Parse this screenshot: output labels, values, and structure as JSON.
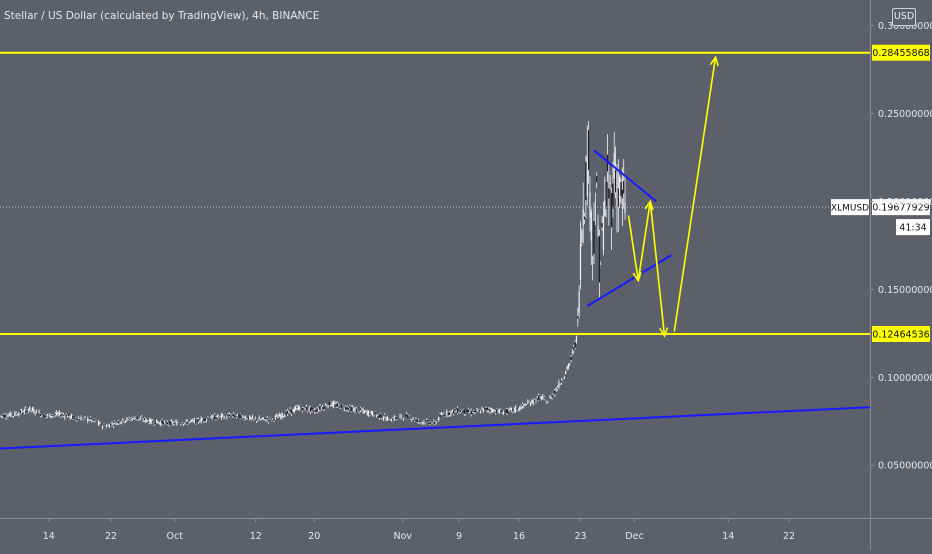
{
  "header": {
    "title": "Stellar / US Dollar (calculated by TradingView), 4h, BINANCE",
    "currency_badge": "USD"
  },
  "colors": {
    "background": "#5d606b",
    "candle": "#f2f2f2",
    "horizontal_level": "#ffff00",
    "trendline": "#1a1aff",
    "projection_arrow": "#ffff00",
    "axis_text": "#e6e6e6"
  },
  "chart_data": {
    "type": "line",
    "symbol": "XLMUSD",
    "interval": "4h",
    "exchange": "BINANCE",
    "y_scale": "linear",
    "ylim": [
      0.02,
      0.31
    ],
    "y_ticks": [
      "0.05000000",
      "0.10000000",
      "0.15000000",
      "0.20000000",
      "0.25000000",
      "0.30000000"
    ],
    "x_ticks": [
      "14",
      "22",
      "Oct",
      "12",
      "20",
      "Nov",
      "9",
      "16",
      "23",
      "Dec",
      "14",
      "22"
    ],
    "x_tick_indices": [
      7.5,
      15.8,
      24.3,
      35.1,
      42.9,
      54.7,
      62.2,
      70.2,
      78.4,
      85.6,
      98.1,
      106.2
    ],
    "xlim": [
      1,
      117
    ],
    "price_series": {
      "x": [
        1,
        3,
        5,
        7,
        9,
        11,
        13,
        15,
        17,
        19,
        21,
        23,
        25,
        27,
        29,
        31,
        33,
        35,
        37,
        39,
        41,
        43,
        45,
        47,
        49,
        51,
        53,
        55,
        57,
        59,
        60,
        62,
        64,
        66,
        68,
        70,
        72,
        73,
        74,
        75,
        76,
        77,
        77.5,
        78,
        78.5,
        79,
        79.5,
        80,
        80.5,
        81,
        81.5,
        82,
        82.5,
        83,
        83.5,
        84,
        84.5
      ],
      "y": [
        0.078,
        0.079,
        0.082,
        0.078,
        0.079,
        0.077,
        0.076,
        0.072,
        0.075,
        0.077,
        0.075,
        0.074,
        0.074,
        0.075,
        0.077,
        0.078,
        0.078,
        0.076,
        0.076,
        0.079,
        0.083,
        0.081,
        0.085,
        0.083,
        0.081,
        0.079,
        0.076,
        0.078,
        0.075,
        0.074,
        0.079,
        0.081,
        0.08,
        0.082,
        0.08,
        0.082,
        0.086,
        0.089,
        0.086,
        0.092,
        0.099,
        0.108,
        0.116,
        0.124,
        0.18,
        0.21,
        0.225,
        0.17,
        0.205,
        0.16,
        0.19,
        0.21,
        0.2,
        0.22,
        0.205,
        0.2,
        0.198
      ]
    },
    "levels": [
      {
        "value": 0.28455868,
        "label": "0.28455868"
      },
      {
        "value": 0.12464536,
        "label": "0.12464536"
      }
    ],
    "last_price": {
      "symbol": "XLMUSD",
      "value": 0.19677929,
      "label": "0.19677929",
      "countdown": "41:34"
    },
    "trendlines": [
      {
        "x": [
          1,
          117
        ],
        "y": [
          0.0595,
          0.083
        ]
      },
      {
        "x": [
          80.2,
          88.5
        ],
        "y": [
          0.229,
          0.2
        ]
      },
      {
        "x": [
          79.3,
          90.5
        ],
        "y": [
          0.1405,
          0.1695
        ]
      }
    ],
    "projection_arrows": [
      {
        "x": [
          84.8,
          86.1
        ],
        "y": [
          0.192,
          0.155
        ]
      },
      {
        "x": [
          86.1,
          87.7
        ],
        "y": [
          0.155,
          0.2
        ]
      },
      {
        "x": [
          87.7,
          89.6
        ],
        "y": [
          0.2,
          0.1235
        ]
      },
      {
        "x": [
          90.9,
          96.4
        ],
        "y": [
          0.126,
          0.282
        ]
      }
    ]
  }
}
